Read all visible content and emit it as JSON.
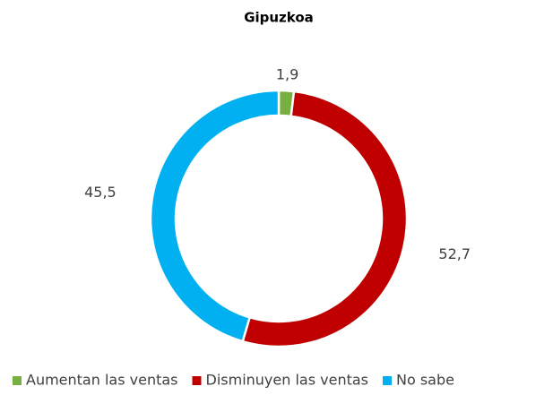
{
  "chart_data": {
    "type": "donut",
    "title": "Gipuzkoa",
    "categories": [
      "Aumentan las ventas",
      "Disminuyen las ventas",
      "No sabe"
    ],
    "values": [
      1.9,
      52.7,
      45.5
    ],
    "value_labels": [
      "1,9",
      "52,7",
      "45,5"
    ],
    "colors": [
      "#77b041",
      "#c00000",
      "#00b0f0"
    ],
    "legend": "bottom"
  }
}
